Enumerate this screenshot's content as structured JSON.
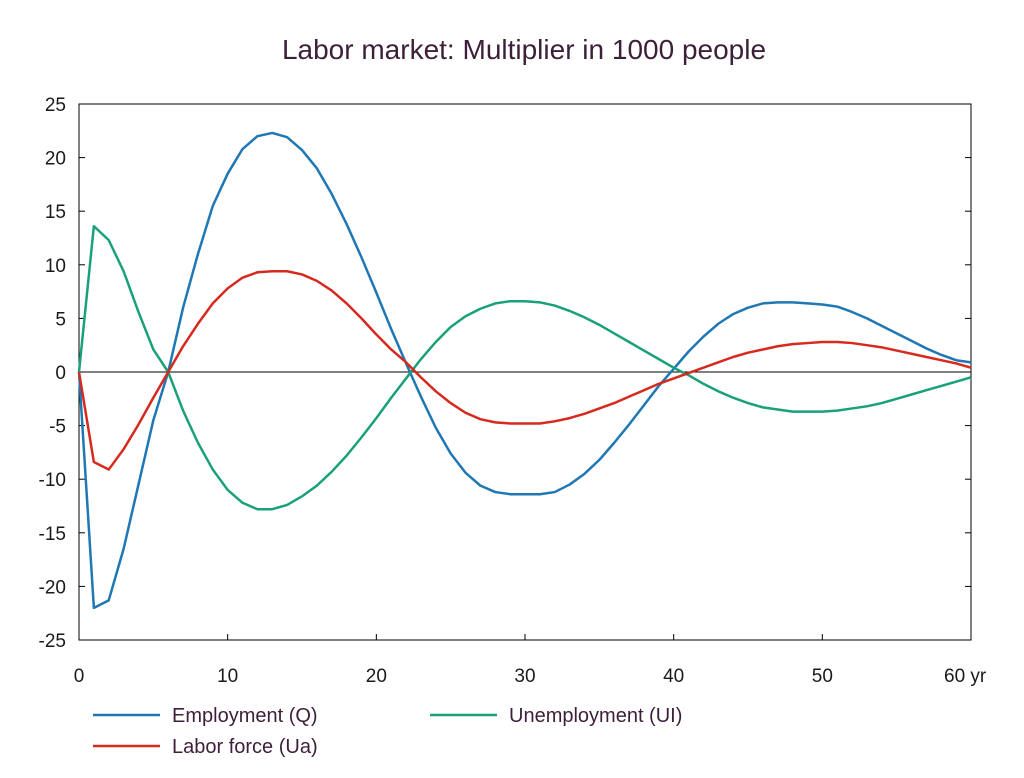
{
  "chart_data": {
    "type": "line",
    "title": "Labor market: Multiplier in 1000 people",
    "xlabel": "",
    "ylabel": "",
    "x_unit_label": "yr",
    "xlim": [
      0,
      60
    ],
    "ylim": [
      -25,
      25
    ],
    "xticks": [
      0,
      10,
      20,
      30,
      40,
      50,
      60
    ],
    "yticks": [
      25,
      20,
      15,
      10,
      5,
      0,
      -5,
      -10,
      -15,
      -20,
      -25
    ],
    "grid": false,
    "legend_position": "bottom",
    "x": [
      0,
      1,
      2,
      3,
      4,
      5,
      6,
      7,
      8,
      9,
      10,
      11,
      12,
      13,
      14,
      15,
      16,
      17,
      18,
      19,
      20,
      21,
      22,
      23,
      24,
      25,
      26,
      27,
      28,
      29,
      30,
      31,
      32,
      33,
      34,
      35,
      36,
      37,
      38,
      39,
      40,
      41,
      42,
      43,
      44,
      45,
      46,
      47,
      48,
      49,
      50,
      51,
      52,
      53,
      54,
      55,
      56,
      57,
      58,
      59,
      60
    ],
    "series": [
      {
        "name": "Employment (Q)",
        "color": "#1f77b4",
        "values": [
          0,
          -22,
          -21.3,
          -16.5,
          -10.5,
          -4.5,
          0,
          6,
          11,
          15.5,
          18.5,
          20.8,
          22,
          22.3,
          21.9,
          20.7,
          19,
          16.6,
          13.8,
          10.7,
          7.4,
          4,
          0.8,
          -2.3,
          -5.2,
          -7.6,
          -9.4,
          -10.6,
          -11.2,
          -11.4,
          -11.4,
          -11.4,
          -11.2,
          -10.5,
          -9.5,
          -8.2,
          -6.6,
          -4.9,
          -3.1,
          -1.3,
          0.3,
          1.9,
          3.3,
          4.5,
          5.4,
          6,
          6.4,
          6.5,
          6.5,
          6.4,
          6.3,
          6.1,
          5.6,
          5,
          4.3,
          3.6,
          2.9,
          2.2,
          1.6,
          1.1,
          0.9
        ]
      },
      {
        "name": "Unemployment (UI)",
        "color": "#1aa07a",
        "values": [
          0,
          13.6,
          12.3,
          9.4,
          5.6,
          2.1,
          0,
          -3.6,
          -6.6,
          -9.1,
          -11,
          -12.2,
          -12.8,
          -12.8,
          -12.4,
          -11.6,
          -10.6,
          -9.3,
          -7.8,
          -6.1,
          -4.3,
          -2.4,
          -0.6,
          1.2,
          2.8,
          4.2,
          5.2,
          5.9,
          6.4,
          6.6,
          6.6,
          6.5,
          6.2,
          5.7,
          5.1,
          4.4,
          3.6,
          2.8,
          2,
          1.2,
          0.4,
          -0.3,
          -1.1,
          -1.8,
          -2.4,
          -2.9,
          -3.3,
          -3.5,
          -3.7,
          -3.7,
          -3.7,
          -3.6,
          -3.4,
          -3.2,
          -2.9,
          -2.5,
          -2.1,
          -1.7,
          -1.3,
          -0.9,
          -0.5
        ]
      },
      {
        "name": "Labor force (Ua)",
        "color": "#d62a1e",
        "values": [
          0,
          -8.4,
          -9.1,
          -7.2,
          -4.9,
          -2.4,
          0,
          2.4,
          4.5,
          6.4,
          7.8,
          8.8,
          9.3,
          9.4,
          9.4,
          9.1,
          8.5,
          7.6,
          6.4,
          5,
          3.5,
          2.1,
          0.9,
          -0.5,
          -1.8,
          -2.9,
          -3.8,
          -4.4,
          -4.7,
          -4.8,
          -4.8,
          -4.8,
          -4.6,
          -4.3,
          -3.9,
          -3.4,
          -2.9,
          -2.3,
          -1.7,
          -1.1,
          -0.6,
          -0.1,
          0.4,
          0.9,
          1.4,
          1.8,
          2.1,
          2.4,
          2.6,
          2.7,
          2.8,
          2.8,
          2.7,
          2.5,
          2.3,
          2,
          1.7,
          1.4,
          1.1,
          0.8,
          0.4
        ]
      }
    ]
  }
}
